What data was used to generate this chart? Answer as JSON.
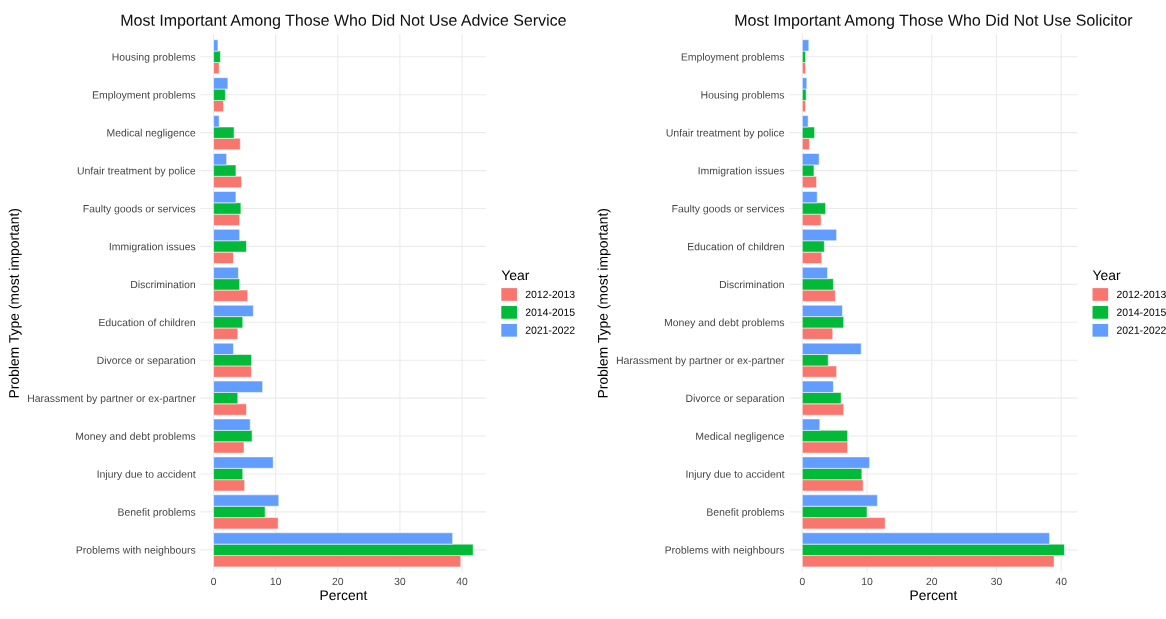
{
  "chart_data": [
    {
      "type": "bar",
      "orientation": "horizontal",
      "title": "Most Important Among Those Who Did Not Use Advice Service",
      "xlabel": "Percent",
      "ylabel": "Problem Type (most important)",
      "legend_title": "Year",
      "legend": "right",
      "grid": true,
      "categories": [
        "Housing problems",
        "Employment problems",
        "Medical negligence",
        "Unfair treatment by police",
        "Faulty goods or services",
        "Immigration issues",
        "Discrimination",
        "Education of children",
        "Divorce or separation",
        "Harassment by partner or ex-partner",
        "Money and debt problems",
        "Injury due to accident",
        "Benefit problems",
        "Problems with neighbours"
      ],
      "xlim": [
        -2.1,
        43.9
      ],
      "xticks": [
        0,
        10,
        20,
        30,
        40
      ],
      "series": [
        {
          "name": "2012-2013",
          "color": "#f8766d",
          "values": [
            0.9,
            1.6,
            4.3,
            4.5,
            4.2,
            3.2,
            5.5,
            3.9,
            6.1,
            5.3,
            4.9,
            5.0,
            10.4,
            39.8
          ]
        },
        {
          "name": "2014-2015",
          "color": "#00ba38",
          "values": [
            1.1,
            1.9,
            3.3,
            3.6,
            4.4,
            5.3,
            4.2,
            4.7,
            6.1,
            3.9,
            6.2,
            4.7,
            8.3,
            41.8
          ]
        },
        {
          "name": "2021-2022",
          "color": "#619cff",
          "values": [
            0.7,
            2.3,
            0.9,
            2.1,
            3.6,
            4.2,
            4.0,
            6.4,
            3.2,
            7.9,
            5.9,
            9.6,
            10.5,
            38.5
          ]
        }
      ]
    },
    {
      "type": "bar",
      "orientation": "horizontal",
      "title": "Most Important Among Those Who Did Not Use Solicitor",
      "xlabel": "Percent",
      "ylabel": "Problem Type (most important)",
      "legend_title": "Year",
      "legend": "right",
      "grid": true,
      "categories": [
        "Employment problems",
        "Housing problems",
        "Unfair treatment by police",
        "Immigration issues",
        "Faulty goods or services",
        "Education of children",
        "Discrimination",
        "Money and debt problems",
        "Harassment by partner or ex-partner",
        "Divorce or separation",
        "Medical negligence",
        "Injury due to accident",
        "Benefit problems",
        "Problems with neighbours"
      ],
      "xlim": [
        -2.0,
        42.5
      ],
      "xticks": [
        0,
        10,
        20,
        30,
        40
      ],
      "series": [
        {
          "name": "2012-2013",
          "color": "#f8766d",
          "values": [
            0.5,
            0.5,
            1.1,
            2.2,
            2.9,
            3.0,
            5.1,
            4.7,
            5.3,
            6.4,
            7.0,
            9.4,
            12.8,
            38.9
          ]
        },
        {
          "name": "2014-2015",
          "color": "#00ba38",
          "values": [
            0.5,
            0.6,
            1.9,
            1.8,
            3.6,
            3.4,
            4.8,
            6.4,
            4.0,
            6.0,
            7.0,
            9.2,
            10.0,
            40.5
          ]
        },
        {
          "name": "2021-2022",
          "color": "#619cff",
          "values": [
            1.0,
            0.7,
            0.9,
            2.6,
            2.3,
            5.3,
            3.9,
            6.2,
            9.1,
            4.8,
            2.7,
            10.4,
            11.6,
            38.2
          ]
        }
      ]
    }
  ]
}
